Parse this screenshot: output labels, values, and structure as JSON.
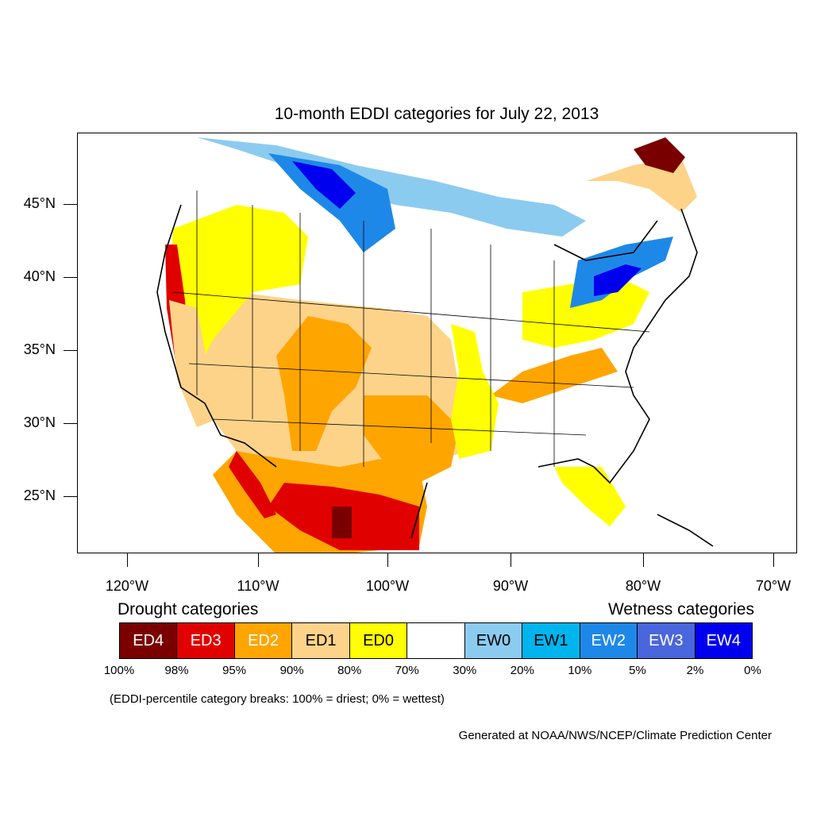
{
  "map": {
    "title": "10-month EDDI categories for July 22, 2013",
    "latitude_labels": [
      "45°N",
      "40°N",
      "35°N",
      "30°N",
      "25°N"
    ],
    "longitude_labels": [
      "120°W",
      "110°W",
      "100°W",
      "90°W",
      "80°W",
      "70°W"
    ]
  },
  "legend": {
    "drought_heading": "Drought categories",
    "wetness_heading": "Wetness categories",
    "categories": [
      {
        "label": "ED4",
        "color": "#7a0000",
        "text_color": "#ffffff"
      },
      {
        "label": "ED3",
        "color": "#e10000",
        "text_color": "#ffffff"
      },
      {
        "label": "ED2",
        "color": "#ffa500",
        "text_color": "#ffffff"
      },
      {
        "label": "ED1",
        "color": "#fdd38a",
        "text_color": "#000000"
      },
      {
        "label": "ED0",
        "color": "#ffff00",
        "text_color": "#000000"
      },
      {
        "label": "",
        "color": "#ffffff",
        "text_color": "#000000"
      },
      {
        "label": "EW0",
        "color": "#8ccbf0",
        "text_color": "#000000"
      },
      {
        "label": "EW1",
        "color": "#00b4ee",
        "text_color": "#000000"
      },
      {
        "label": "EW2",
        "color": "#1e88e8",
        "text_color": "#ffffff"
      },
      {
        "label": "EW3",
        "color": "#4a66dc",
        "text_color": "#ffffff"
      },
      {
        "label": "EW4",
        "color": "#0000ee",
        "text_color": "#ffffff"
      }
    ],
    "breaks": [
      "100%",
      "98%",
      "95%",
      "90%",
      "80%",
      "70%",
      "30%",
      "20%",
      "10%",
      "5%",
      "2%",
      "0%"
    ]
  },
  "footnote": "(EDDI-percentile category breaks: 100% = driest; 0% = wettest)",
  "credit": "Generated at NOAA/NWS/NCEP/Climate Prediction Center"
}
